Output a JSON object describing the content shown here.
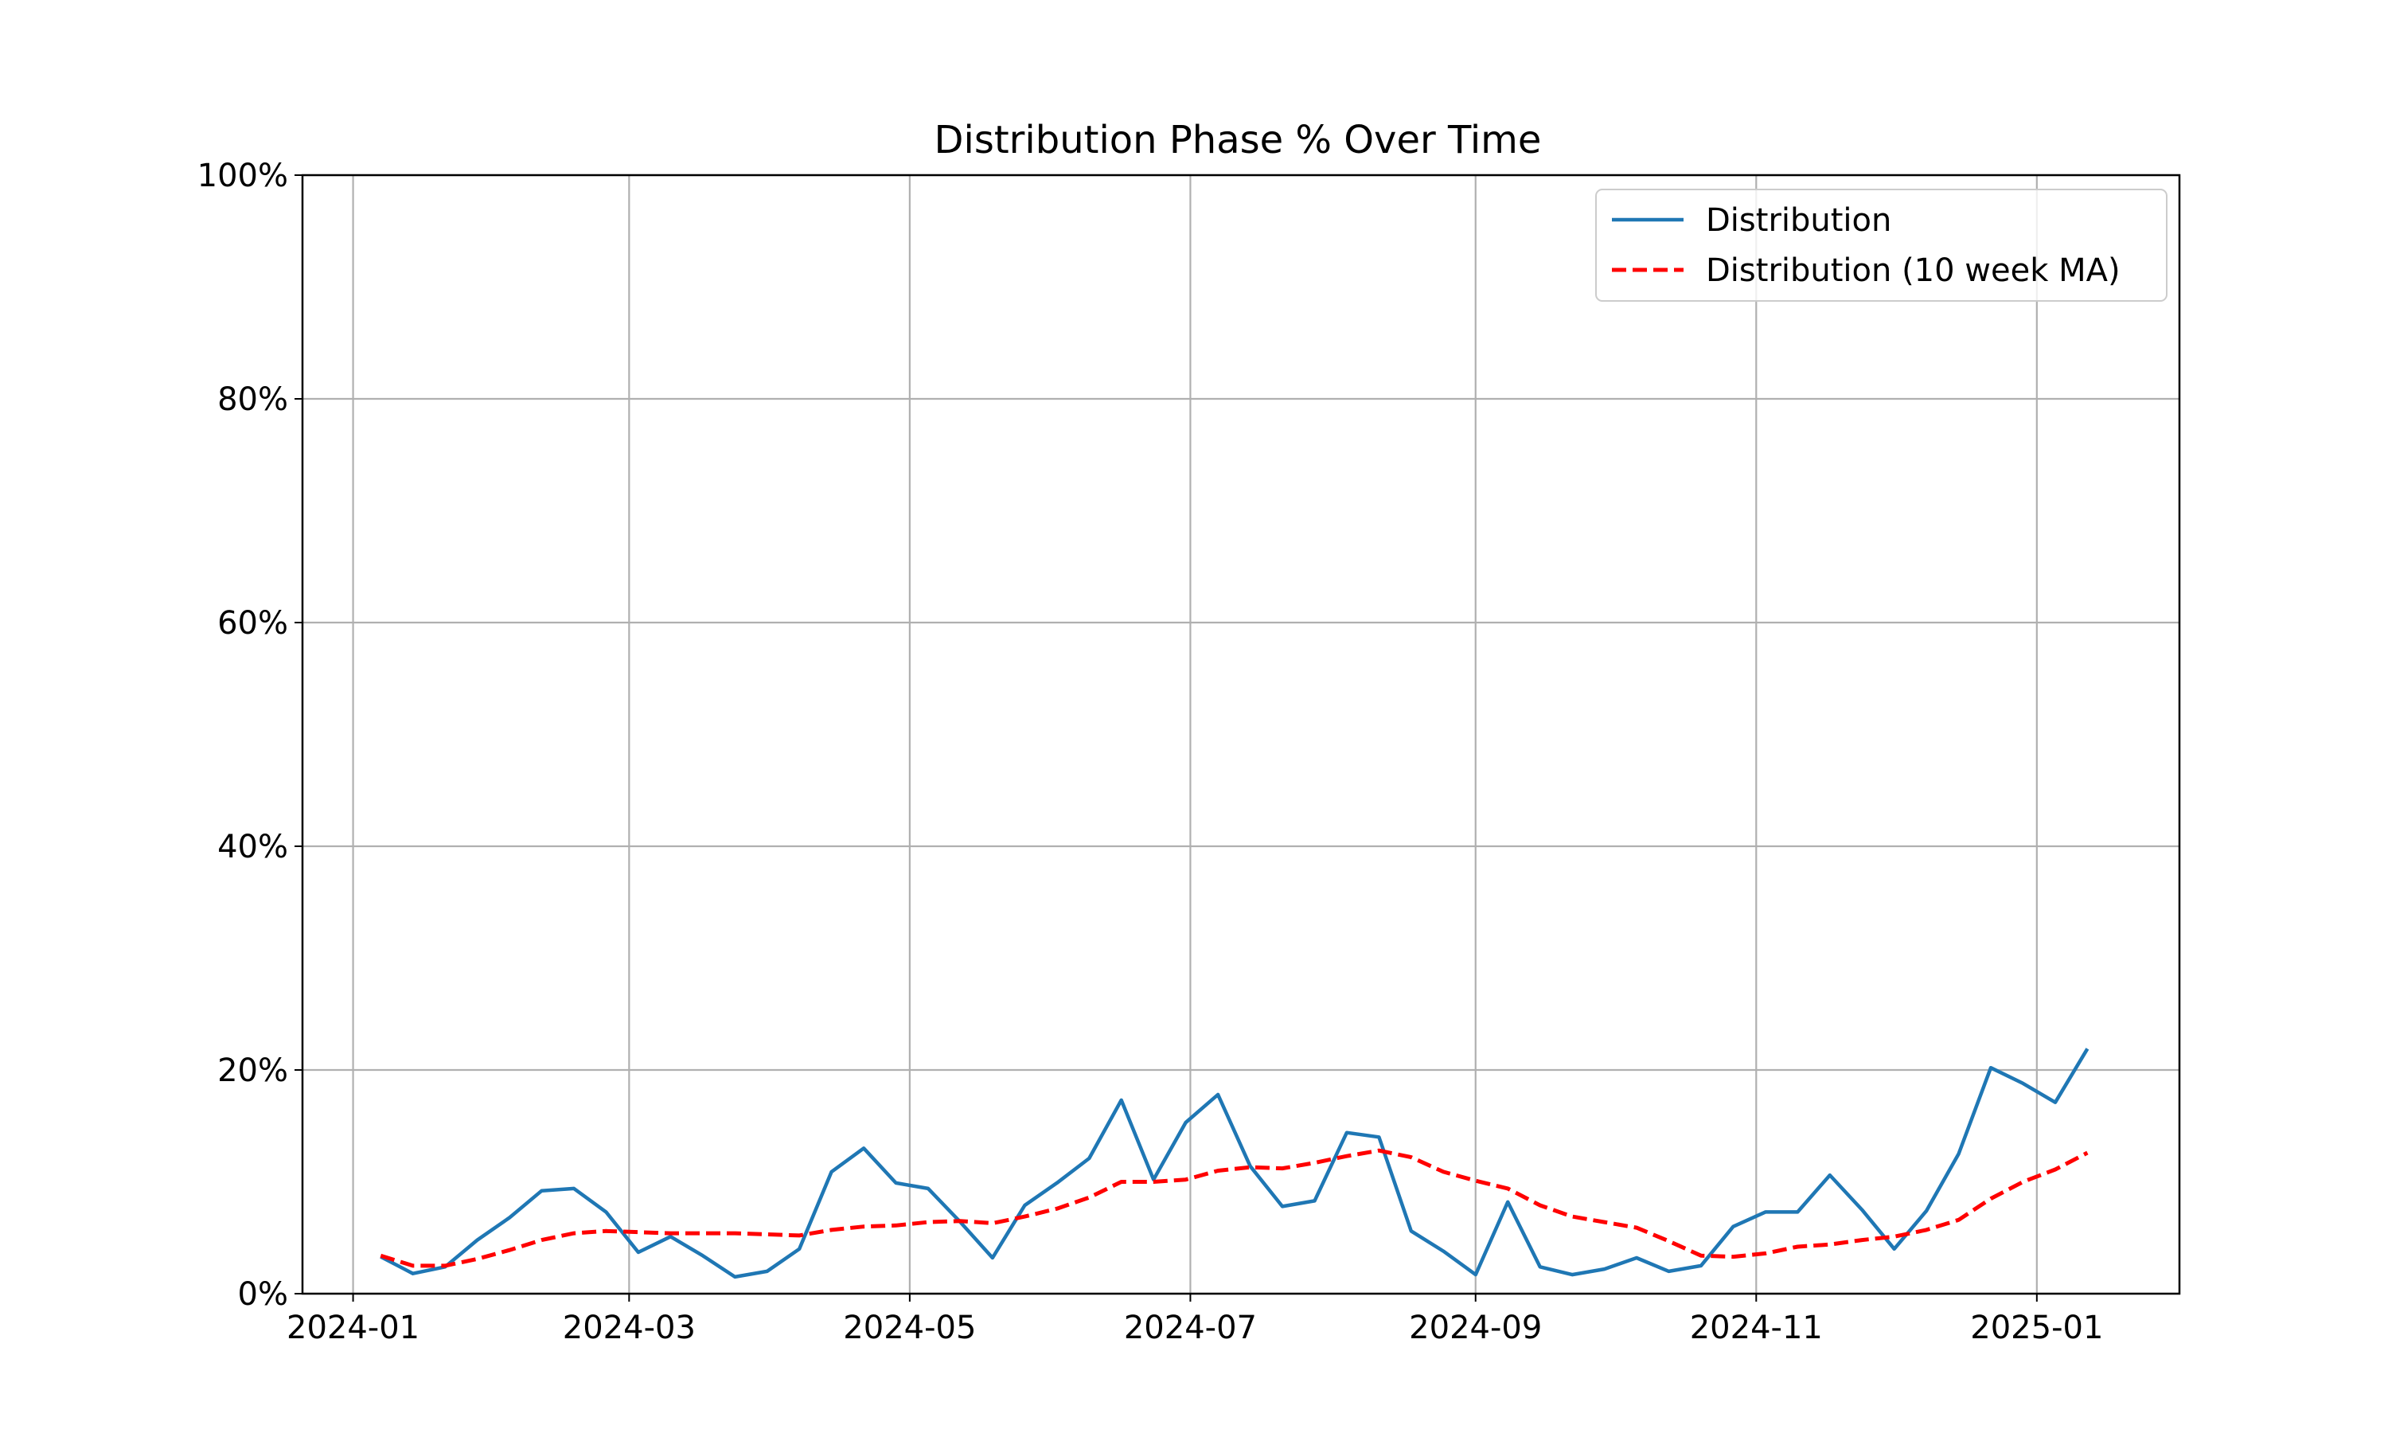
{
  "chart_data": {
    "type": "line",
    "title": "Distribution Phase % Over Time",
    "xlabel": "",
    "ylabel": "",
    "x_ticks": [
      "2024-01",
      "2024-03",
      "2024-05",
      "2024-07",
      "2024-09",
      "2024-11",
      "2025-01"
    ],
    "y_ticks": [
      "0%",
      "20%",
      "40%",
      "60%",
      "80%",
      "100%"
    ],
    "ylim": [
      0,
      100
    ],
    "xlim": [
      "2023-12-21",
      "2025-02-01"
    ],
    "grid": true,
    "legend_position": "top-right",
    "x": [
      "2024-01-07",
      "2024-01-14",
      "2024-01-21",
      "2024-01-28",
      "2024-02-04",
      "2024-02-11",
      "2024-02-18",
      "2024-02-25",
      "2024-03-03",
      "2024-03-10",
      "2024-03-17",
      "2024-03-24",
      "2024-03-31",
      "2024-04-07",
      "2024-04-14",
      "2024-04-21",
      "2024-04-28",
      "2024-05-05",
      "2024-05-12",
      "2024-05-19",
      "2024-05-26",
      "2024-06-02",
      "2024-06-09",
      "2024-06-16",
      "2024-06-23",
      "2024-06-30",
      "2024-07-07",
      "2024-07-14",
      "2024-07-21",
      "2024-07-28",
      "2024-08-04",
      "2024-08-11",
      "2024-08-18",
      "2024-08-25",
      "2024-09-01",
      "2024-09-08",
      "2024-09-15",
      "2024-09-22",
      "2024-09-29",
      "2024-10-06",
      "2024-10-13",
      "2024-10-20",
      "2024-10-27",
      "2024-11-03",
      "2024-11-10",
      "2024-11-17",
      "2024-11-24",
      "2024-12-01",
      "2024-12-08",
      "2024-12-15",
      "2024-12-22",
      "2024-12-29",
      "2025-01-05",
      "2025-01-12"
    ],
    "series": [
      {
        "name": "Distribution",
        "color": "#1f77b4",
        "style": "solid",
        "values": [
          3.3,
          1.8,
          2.4,
          4.8,
          6.8,
          9.2,
          9.4,
          7.3,
          3.7,
          5.1,
          3.4,
          1.5,
          2.0,
          4.0,
          10.9,
          13.0,
          9.9,
          9.4,
          6.4,
          3.2,
          7.9,
          9.9,
          12.1,
          17.3,
          10.2,
          15.3,
          17.8,
          11.4,
          7.8,
          8.3,
          14.4,
          14.0,
          5.6,
          3.8,
          1.7,
          8.2,
          2.4,
          1.7,
          2.2,
          3.2,
          2.0,
          2.5,
          6.0,
          7.3,
          7.3,
          10.6,
          7.5,
          4.0,
          7.4,
          12.5,
          20.2,
          18.8,
          17.1,
          21.9
        ]
      },
      {
        "name": "Distribution (10 week MA)",
        "color": "#ff0000",
        "style": "dashed",
        "values": [
          3.4,
          2.5,
          2.5,
          3.1,
          3.9,
          4.8,
          5.4,
          5.6,
          5.5,
          5.4,
          5.4,
          5.4,
          5.3,
          5.2,
          5.7,
          6.0,
          6.1,
          6.4,
          6.5,
          6.3,
          6.9,
          7.6,
          8.6,
          10.0,
          10.0,
          10.2,
          11.0,
          11.3,
          11.2,
          11.7,
          12.3,
          12.8,
          12.2,
          10.9,
          10.1,
          9.4,
          7.9,
          6.9,
          6.4,
          5.9,
          4.7,
          3.4,
          3.3,
          3.6,
          4.2,
          4.4,
          4.8,
          5.1,
          5.7,
          6.6,
          8.5,
          10.0,
          11.1,
          12.6
        ]
      }
    ]
  }
}
